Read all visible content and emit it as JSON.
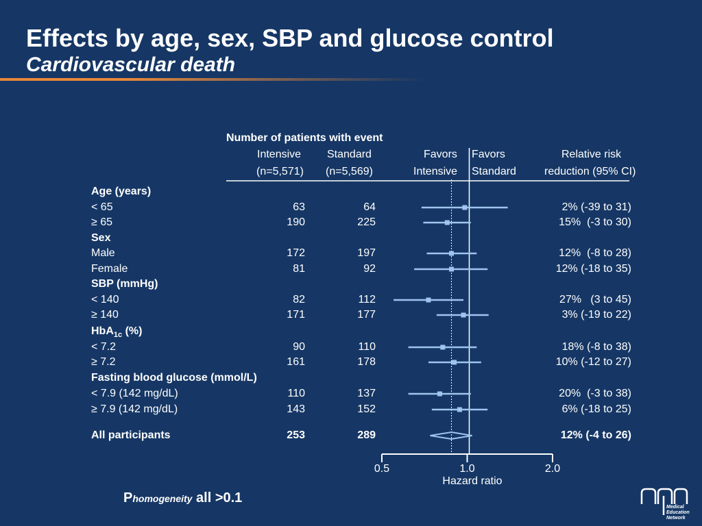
{
  "slide": {
    "title": "Effects by age, sex, SBP and glucose control",
    "subtitle": "Cardiovascular death"
  },
  "table_header": {
    "group_title": "Number of patients with event",
    "col_intensive": "Intensive",
    "col_intensive_n": "(n=5,571)",
    "col_standard": "Standard",
    "col_standard_n": "(n=5,569)",
    "favors_left_1": "Favors",
    "favors_left_2": "Intensive",
    "favors_right_1": "Favors",
    "favors_right_2": "Standard",
    "rrr_1": "Relative risk",
    "rrr_2": "reduction (95% CI)"
  },
  "rows": [
    {
      "label": "Age (years)",
      "type": "header"
    },
    {
      "label": "< 65",
      "intensive": "63",
      "standard": "64",
      "rrr": "2% (-39 to 31)"
    },
    {
      "label": "≥ 65",
      "intensive": "190",
      "standard": "225",
      "rrr": "15%  (-3 to 30)"
    },
    {
      "label": "Sex",
      "type": "header"
    },
    {
      "label": "Male",
      "intensive": "172",
      "standard": "197",
      "rrr": "12%  (-8 to 28)"
    },
    {
      "label": "Female",
      "intensive": "81",
      "standard": "92",
      "rrr": "12% (-18 to 35)"
    },
    {
      "label": "SBP (mmHg)",
      "type": "header"
    },
    {
      "label": "< 140",
      "intensive": "82",
      "standard": "112",
      "rrr": "27%   (3 to 45)"
    },
    {
      "label": "≥ 140",
      "intensive": "171",
      "standard": "177",
      "rrr": "3% (-19 to 22)"
    },
    {
      "label": "HbA",
      "label_sub": "1c",
      "label_suffix": " (%)",
      "type": "header"
    },
    {
      "label": "< 7.2",
      "intensive": "90",
      "standard": "110",
      "rrr": "18% (-8 to 38)"
    },
    {
      "label": "≥ 7.2",
      "intensive": "161",
      "standard": "178",
      "rrr": "10% (-12 to 27)"
    },
    {
      "label": "Fasting blood glucose (mmol/L)",
      "type": "header"
    },
    {
      "label": "< 7.9 (142 mg/dL)",
      "intensive": "110",
      "standard": "137",
      "rrr": "20%  (-3 to 38)"
    },
    {
      "label": "≥ 7.9 (142 mg/dL)",
      "intensive": "143",
      "standard": "152",
      "rrr": "6% (-18 to 25)"
    },
    {
      "label": "All participants",
      "intensive": "253",
      "standard": "289",
      "rrr": "12% (-4 to 26)",
      "type": "overall"
    }
  ],
  "chart_data": {
    "type": "forest",
    "xlabel": "Hazard ratio",
    "xscale": "log",
    "xlim": [
      0.5,
      2.0
    ],
    "xticks": [
      0.5,
      1.0,
      2.0
    ],
    "xtick_labels": [
      "0.5",
      "1.0",
      "2.0"
    ],
    "reference_line": 1.0,
    "overall_reference": 0.88,
    "points": [
      {
        "row": 1,
        "hr": 0.98,
        "lo": 0.69,
        "hi": 1.39
      },
      {
        "row": 2,
        "hr": 0.85,
        "lo": 0.7,
        "hi": 1.03
      },
      {
        "row": 4,
        "hr": 0.88,
        "lo": 0.72,
        "hi": 1.08
      },
      {
        "row": 5,
        "hr": 0.88,
        "lo": 0.65,
        "hi": 1.18
      },
      {
        "row": 7,
        "hr": 0.73,
        "lo": 0.55,
        "hi": 0.97
      },
      {
        "row": 8,
        "hr": 0.97,
        "lo": 0.78,
        "hi": 1.19
      },
      {
        "row": 10,
        "hr": 0.82,
        "lo": 0.62,
        "hi": 1.08
      },
      {
        "row": 11,
        "hr": 0.9,
        "lo": 0.73,
        "hi": 1.12
      },
      {
        "row": 13,
        "hr": 0.8,
        "lo": 0.62,
        "hi": 1.03
      },
      {
        "row": 14,
        "hr": 0.94,
        "lo": 0.75,
        "hi": 1.18
      },
      {
        "row": 15,
        "hr": 0.88,
        "lo": 0.74,
        "hi": 1.04,
        "overall": true
      }
    ]
  },
  "footnote": {
    "p": "P",
    "sub": "homogeneity",
    "rest": " all >0.1"
  },
  "logo": {
    "line1": "Medical",
    "line2": "Education",
    "line3": "Network"
  }
}
